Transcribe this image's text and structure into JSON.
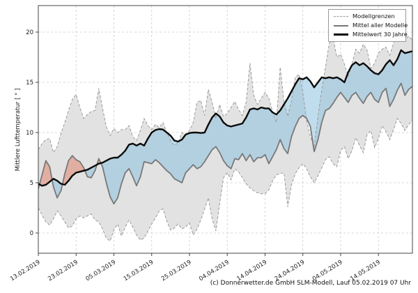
{
  "figure": {
    "ylabel": "Mittlere Lufttemperatur [ ° ]",
    "caption": "(c) Donnerwetter.de GmbH SLM-Modell, Lauf 05.02.2019 07 Uhr"
  },
  "legend": {
    "position": "top-right",
    "items": [
      {
        "label": "Modellgrenzen",
        "style": "dashed-gray"
      },
      {
        "label": "Mittel aller Modelle",
        "style": "solid-gray"
      },
      {
        "label": "Mittelwert 30 Jahre",
        "style": "solid-black"
      }
    ]
  },
  "chart_data": {
    "type": "line",
    "title": "",
    "xlabel": "",
    "ylabel": "Mittlere Lufttemperatur [ ° ]",
    "x_unit": "days since 13.02.2019 (daily values)",
    "xlim_days": [
      0,
      99
    ],
    "ylim": [
      -2,
      22.5
    ],
    "grid": true,
    "legend_position": "top-right",
    "yticks": [
      0,
      5,
      10,
      15,
      20
    ],
    "xtick_days": [
      0,
      10,
      20,
      30,
      40,
      50,
      60,
      70,
      80,
      90
    ],
    "xtick_labels": [
      "13.02.2019",
      "23.02.2019",
      "05.03.2019",
      "15.03.2019",
      "25.03.2019",
      "04.04.2019",
      "14.04.2019",
      "24.04.2019",
      "04.05.2019",
      "14.05.2019"
    ],
    "series": [
      {
        "name": "Modellgrenzen (obere Grenze)",
        "role": "upper_bound",
        "line": "dashed",
        "color": "#9a9a9a",
        "values": [
          8.3,
          8.9,
          9.3,
          9.4,
          8.0,
          8.6,
          9.9,
          11.0,
          12.2,
          13.3,
          13.8,
          12.5,
          11.4,
          11.8,
          12.1,
          12.2,
          14.4,
          12.4,
          10.6,
          9.7,
          10.4,
          10.0,
          10.3,
          10.3,
          10.7,
          9.6,
          9.2,
          10.2,
          11.4,
          10.7,
          10.3,
          10.8,
          10.5,
          11.0,
          10.0,
          9.2,
          8.7,
          9.0,
          10.0,
          9.8,
          10.2,
          11.0,
          13.0,
          13.2,
          11.7,
          14.3,
          13.0,
          11.4,
          12.8,
          11.6,
          11.9,
          12.5,
          13.1,
          12.3,
          11.7,
          13.0,
          16.9,
          13.7,
          12.8,
          13.4,
          14.0,
          13.4,
          12.1,
          11.0,
          16.5,
          13.0,
          11.6,
          13.2,
          15.5,
          15.8,
          14.0,
          11.2,
          9.6,
          8.6,
          11.6,
          14.2,
          16.5,
          18.9,
          19.4,
          17.5,
          17.8,
          16.8,
          15.6,
          16.8,
          18.3,
          17.9,
          18.8,
          18.2,
          16.4,
          16.9,
          17.9,
          18.3,
          18.5,
          17.7,
          18.9,
          20.2,
          19.8,
          19.3,
          19.6,
          19.2
        ]
      },
      {
        "name": "Modellgrenzen (untere Grenze)",
        "role": "lower_bound",
        "line": "dashed",
        "color": "#9a9a9a",
        "values": [
          2.5,
          1.8,
          1.1,
          0.8,
          1.4,
          2.2,
          1.7,
          1.1,
          0.5,
          0.7,
          1.4,
          1.7,
          1.5,
          1.7,
          1.9,
          1.3,
          1.1,
          0.4,
          -0.5,
          -0.8,
          0.3,
          0.9,
          -0.3,
          0.6,
          1.3,
          0.6,
          -0.2,
          -0.7,
          -0.5,
          0.2,
          0.9,
          1.5,
          2.2,
          2.4,
          1.2,
          0.3,
          0.5,
          0.9,
          0.4,
          0.6,
          1.0,
          -0.2,
          0.4,
          1.3,
          2.4,
          3.5,
          1.4,
          0.2,
          3.0,
          5.5,
          6.0,
          5.3,
          6.4,
          6.1,
          5.5,
          4.9,
          4.5,
          4.2,
          4.0,
          3.9,
          3.9,
          4.3,
          5.2,
          5.8,
          5.9,
          6.0,
          2.6,
          4.8,
          5.9,
          6.5,
          6.9,
          6.4,
          5.6,
          5.0,
          5.7,
          6.5,
          7.3,
          7.6,
          6.9,
          6.6,
          8.2,
          8.6,
          7.4,
          8.2,
          9.5,
          8.7,
          8.0,
          9.8,
          10.2,
          8.5,
          9.4,
          10.7,
          10.1,
          9.3,
          10.3,
          11.4,
          10.9,
          10.2,
          10.8,
          11.2
        ]
      },
      {
        "name": "Mittel aller Modelle",
        "role": "model_mean",
        "line": "solid",
        "color": "#787878",
        "values": [
          4.4,
          5.8,
          7.2,
          6.6,
          4.6,
          3.5,
          4.2,
          5.9,
          7.2,
          7.7,
          7.3,
          7.1,
          6.5,
          5.6,
          5.5,
          6.2,
          7.4,
          6.6,
          5.0,
          3.6,
          2.9,
          3.5,
          4.9,
          6.0,
          6.4,
          5.6,
          4.7,
          5.6,
          7.1,
          7.0,
          6.9,
          7.3,
          7.0,
          6.6,
          6.2,
          5.9,
          5.4,
          5.2,
          5.0,
          6.0,
          6.4,
          6.8,
          6.4,
          6.6,
          7.1,
          7.7,
          8.3,
          8.6,
          8.0,
          7.2,
          6.7,
          6.4,
          7.4,
          7.3,
          7.9,
          7.2,
          7.8,
          7.1,
          7.5,
          7.5,
          7.8,
          6.9,
          7.6,
          8.3,
          9.3,
          8.4,
          7.9,
          9.6,
          10.6,
          11.4,
          11.7,
          11.4,
          10.6,
          8.1,
          9.3,
          11.0,
          12.2,
          12.4,
          12.9,
          13.5,
          14.0,
          13.5,
          13.0,
          13.7,
          14.0,
          13.4,
          12.9,
          13.6,
          14.0,
          13.3,
          13.0,
          14.0,
          14.4,
          12.6,
          13.3,
          14.2,
          14.9,
          13.7,
          14.3,
          14.6
        ]
      },
      {
        "name": "Mittelwert 30 Jahre",
        "role": "mean_30y",
        "line": "solid-thick",
        "color": "#0a0a0a",
        "values": [
          4.9,
          4.7,
          4.8,
          5.1,
          5.4,
          5.2,
          4.9,
          4.8,
          5.2,
          5.7,
          6.0,
          6.1,
          6.2,
          6.3,
          6.5,
          6.7,
          6.9,
          7.0,
          7.2,
          7.4,
          7.5,
          7.5,
          7.8,
          8.2,
          8.8,
          8.9,
          8.7,
          8.9,
          8.7,
          9.4,
          10.0,
          10.25,
          10.35,
          10.3,
          10.0,
          9.7,
          9.2,
          9.1,
          9.3,
          9.8,
          9.95,
          10.0,
          10.0,
          9.95,
          10.0,
          10.8,
          11.5,
          11.9,
          11.6,
          11.0,
          10.7,
          10.6,
          10.7,
          10.8,
          10.9,
          11.5,
          12.3,
          12.4,
          12.3,
          12.5,
          12.4,
          12.4,
          12.0,
          11.8,
          12.2,
          12.8,
          13.4,
          14.1,
          14.8,
          15.4,
          15.3,
          15.5,
          15.1,
          14.5,
          15.0,
          15.5,
          15.4,
          15.5,
          15.4,
          15.5,
          15.3,
          15.0,
          16.0,
          16.7,
          17.0,
          16.7,
          16.9,
          16.6,
          16.2,
          15.9,
          15.8,
          16.2,
          16.8,
          17.2,
          16.7,
          17.3,
          18.2,
          17.9,
          18.0,
          18.1
        ]
      }
    ],
    "fills": {
      "model_range_band": "between upper_bound and lower_bound, light gray",
      "cold_anomaly": "between model_mean and mean_30y where model_mean < mean_30y, light blue",
      "warm_anomaly": "between model_mean and mean_30y where model_mean > mean_30y, salmon red"
    },
    "colors": {
      "band_fill": "#e2e2e2",
      "cold_fill": "rgba(140,193,222,0.55)",
      "warm_fill": "rgba(225,112,85,0.45)",
      "bound_line": "#9a9a9a",
      "mean_line": "#787878",
      "mean30_line": "#0a0a0a",
      "grid": "#cccccc",
      "spine": "#444444",
      "tick_text": "#1a1a1a"
    }
  }
}
